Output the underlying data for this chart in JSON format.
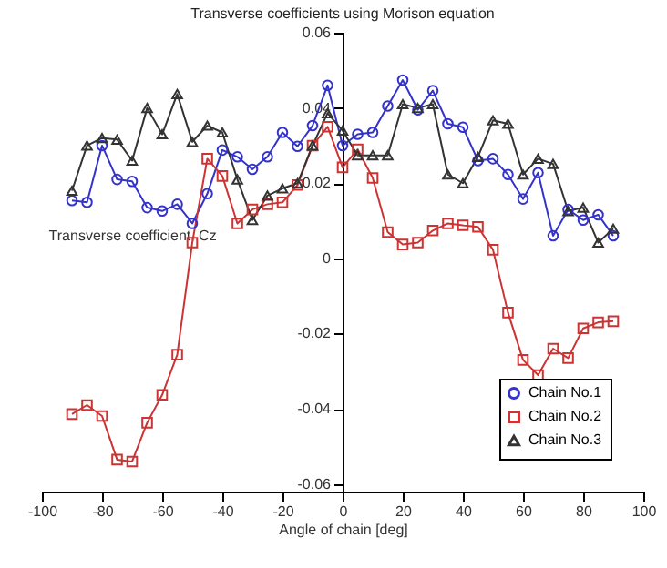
{
  "chart_data": {
    "type": "line",
    "title": "Transverse coefficients using Morison equation",
    "xlabel": "Angle of chain [deg]",
    "ylabel": "Transverse coefficient, Cz",
    "x": [
      -90,
      -85,
      -80,
      -75,
      -70,
      -65,
      -60,
      -55,
      -50,
      -45,
      -40,
      -35,
      -30,
      -25,
      -20,
      -15,
      -10,
      -5,
      0,
      5,
      10,
      15,
      20,
      25,
      30,
      35,
      40,
      45,
      50,
      55,
      60,
      65,
      70,
      75,
      80,
      85,
      90
    ],
    "series": [
      {
        "name": "Chain No.1",
        "color": "#3333cc",
        "marker": "circle",
        "values": [
          0.0154,
          0.0149,
          0.03,
          0.021,
          0.0205,
          0.0135,
          0.0126,
          0.0144,
          0.0093,
          0.0172,
          0.0288,
          0.027,
          0.0237,
          0.027,
          0.0335,
          0.0298,
          0.0353,
          0.046,
          0.03,
          0.033,
          0.0335,
          0.0405,
          0.0474,
          0.0395,
          0.0446,
          0.0358,
          0.0349,
          0.026,
          0.0265,
          0.0223,
          0.0158,
          0.0228,
          0.006,
          0.013,
          0.0102,
          0.0116,
          0.006
        ]
      },
      {
        "name": "Chain No.2",
        "color": "#cc3333",
        "marker": "square",
        "values": [
          -0.0414,
          -0.039,
          -0.0419,
          -0.0535,
          -0.054,
          -0.0437,
          -0.0363,
          -0.0256,
          0.0042,
          0.0265,
          0.0219,
          0.0093,
          0.013,
          0.0144,
          0.0149,
          0.0195,
          0.03,
          0.035,
          0.0242,
          0.029,
          0.0214,
          0.007,
          0.0037,
          0.0042,
          0.0074,
          0.0093,
          0.0088,
          0.0084,
          0.0023,
          -0.0144,
          -0.027,
          -0.031,
          -0.024,
          -0.0265,
          -0.0186,
          -0.017,
          -0.0167
        ]
      },
      {
        "name": "Chain No.3",
        "color": "#333333",
        "marker": "triangle",
        "values": [
          0.018,
          0.03,
          0.032,
          0.0316,
          0.026,
          0.04,
          0.033,
          0.0437,
          0.031,
          0.0353,
          0.0335,
          0.021,
          0.0102,
          0.0167,
          0.0186,
          0.02,
          0.03,
          0.0386,
          0.034,
          0.0274,
          0.0274,
          0.0274,
          0.041,
          0.04,
          0.041,
          0.0223,
          0.02,
          0.027,
          0.0367,
          0.0358,
          0.0223,
          0.0265,
          0.0251,
          0.0126,
          0.0135,
          0.0042,
          0.0079
        ]
      }
    ],
    "xlim": [
      -100,
      100
    ],
    "xticks": [
      -100,
      -80,
      -60,
      -40,
      -20,
      0,
      20,
      40,
      60,
      80,
      100
    ],
    "ylim": [
      -0.062,
      0.06
    ],
    "yticks": [
      -0.06,
      -0.04,
      -0.02,
      0,
      0.02,
      0.04,
      0.06
    ],
    "legend": "bottom right",
    "grid": false
  }
}
